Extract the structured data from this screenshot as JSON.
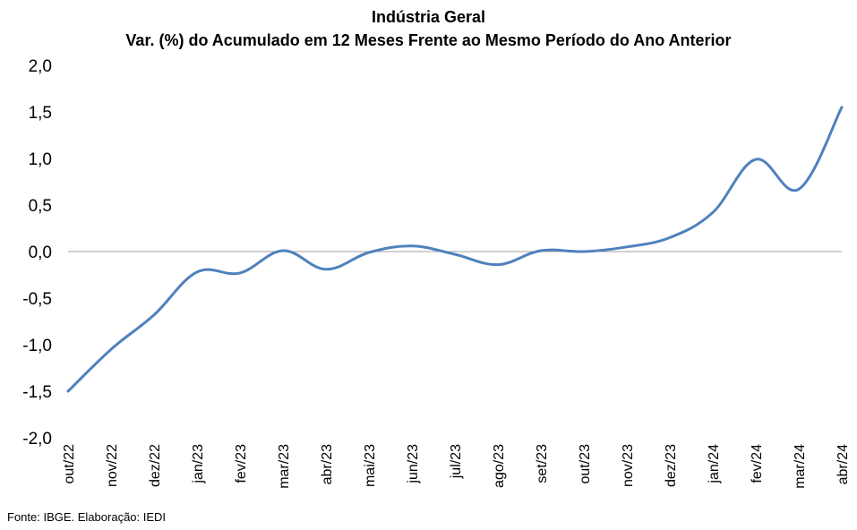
{
  "chart_data": {
    "type": "line",
    "title": "Indústria Geral",
    "subtitle": "Var. (%) do Acumulado em 12 Meses Frente ao Mesmo Período do Ano Anterior",
    "xlabel": "",
    "ylabel": "",
    "categories": [
      "out/22",
      "nov/22",
      "dez/22",
      "jan/23",
      "fev/23",
      "mar/23",
      "abr/23",
      "mai/23",
      "jun/23",
      "jul/23",
      "ago/23",
      "set/23",
      "out/23",
      "nov/23",
      "dez/23",
      "jan/24",
      "fev/24",
      "mar/24",
      "abr/24"
    ],
    "series": [
      {
        "name": "",
        "values": [
          -1.5,
          -1.05,
          -0.68,
          -0.22,
          -0.23,
          0.01,
          -0.19,
          -0.01,
          0.06,
          -0.03,
          -0.14,
          0.01,
          0.0,
          0.05,
          0.15,
          0.42,
          0.99,
          0.67,
          1.55
        ]
      }
    ],
    "ylim": [
      -2.0,
      2.0
    ],
    "yticks": [
      "2,0",
      "1,5",
      "1,0",
      "0,5",
      "0,0",
      "-0,5",
      "-1,0",
      "-1,5",
      "-2,0"
    ],
    "ytick_values": [
      2.0,
      1.5,
      1.0,
      0.5,
      0.0,
      -0.5,
      -1.0,
      -1.5,
      -2.0
    ],
    "grid": false,
    "line_color": "#4f81bd",
    "zero_line_color": "#a0a0a0"
  },
  "source": "Fonte: IBGE. Elaboração: IEDI"
}
